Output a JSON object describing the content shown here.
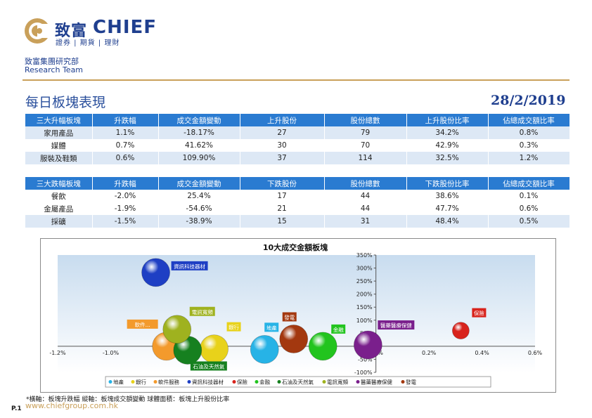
{
  "header": {
    "brand_cn": "致富",
    "brand_en": "CHIEF",
    "brand_tagline": "證券 | 期貨 | 理財",
    "department": "致富集團研究部",
    "team": "Research Team",
    "accent_color": "#c9a05a",
    "brand_color": "#1f3f8f"
  },
  "title": "每日板塊表現",
  "date": "28/2/2019",
  "table_up": {
    "headers": [
      "三大升幅板塊",
      "升跌幅",
      "成交金額變動",
      "上升股份",
      "股份總數",
      "上升股份比率",
      "佔總成交額比率"
    ],
    "rows": [
      [
        "家用產品",
        "1.1%",
        "-18.17%",
        "27",
        "79",
        "34.2%",
        "0.8%"
      ],
      [
        "媒體",
        "0.7%",
        "41.62%",
        "30",
        "70",
        "42.9%",
        "0.3%"
      ],
      [
        "服裝及鞋類",
        "0.6%",
        "109.90%",
        "37",
        "114",
        "32.5%",
        "1.2%"
      ]
    ]
  },
  "table_down": {
    "headers": [
      "三大跌幅板塊",
      "升跌幅",
      "成交金額變動",
      "下跌股份",
      "股份總數",
      "下跌股份比率",
      "佔總成交額比率"
    ],
    "rows": [
      [
        "餐飲",
        "-2.0%",
        "25.4%",
        "17",
        "44",
        "38.6%",
        "0.1%"
      ],
      [
        "金屬產品",
        "-1.9%",
        "-54.6%",
        "21",
        "44",
        "47.7%",
        "0.6%"
      ],
      [
        "採礦",
        "-1.5%",
        "-38.9%",
        "15",
        "31",
        "48.4%",
        "0.5%"
      ]
    ]
  },
  "chart_data": {
    "type": "scatter",
    "title": "10大成交金額板塊",
    "xlim": [
      -1.2,
      0.6
    ],
    "ylim": [
      -100,
      350
    ],
    "x_ticks": [
      "-1.2%",
      "-1.0%",
      "-0.8%",
      "-0.6%",
      "-0.4%",
      "-0.2%",
      "0.0%",
      "0.2%",
      "0.4%",
      "0.6%"
    ],
    "x_tick_values": [
      -1.2,
      -1.0,
      -0.8,
      -0.6,
      -0.4,
      -0.2,
      0.0,
      0.2,
      0.4,
      0.6
    ],
    "y_ticks": [
      "-100%",
      "-50%",
      "0%",
      "50%",
      "100%",
      "150%",
      "200%",
      "250%",
      "300%",
      "350%"
    ],
    "y_tick_values": [
      -100,
      -50,
      0,
      50,
      100,
      150,
      200,
      250,
      300,
      350
    ],
    "series": [
      {
        "name": "地產",
        "x": -0.42,
        "y": -12,
        "color": "#27b3e6"
      },
      {
        "name": "銀行",
        "x": -0.61,
        "y": -10,
        "color": "#e8d21a"
      },
      {
        "name": "軟件服務",
        "x": -0.79,
        "y": 0,
        "color": "#f39a2c"
      },
      {
        "name": "資訊科技器材",
        "x": -0.83,
        "y": 283,
        "color": "#1e3fc4"
      },
      {
        "name": "保險",
        "x": 0.32,
        "y": 60,
        "color": "#d8231c"
      },
      {
        "name": "金融",
        "x": -0.2,
        "y": 0,
        "color": "#22c41e"
      },
      {
        "name": "石油及天然氣",
        "x": -0.71,
        "y": -15,
        "color": "#16801f"
      },
      {
        "name": "電訊寬頻",
        "x": -0.75,
        "y": 65,
        "color": "#9fb21f"
      },
      {
        "name": "醫藥醫療保健",
        "x": -0.03,
        "y": 5,
        "color": "#7a1f8c"
      },
      {
        "name": "發電",
        "x": -0.31,
        "y": 28,
        "color": "#a3380f"
      }
    ],
    "legend": [
      "地產",
      "銀行",
      "軟件服務",
      "資訊科技器材",
      "保險",
      "金融",
      "石油及天然氣",
      "電訊寬頻",
      "醫藥醫療保健",
      "發電"
    ],
    "legend_position": "bottom",
    "grid": false
  },
  "footnote": "*橫軸：板塊升跌幅   縱軸：板塊成交額變動   球體面積：板塊上升股份比率",
  "website": "www.chiefgroup.com.hk",
  "page_number": "P.1"
}
